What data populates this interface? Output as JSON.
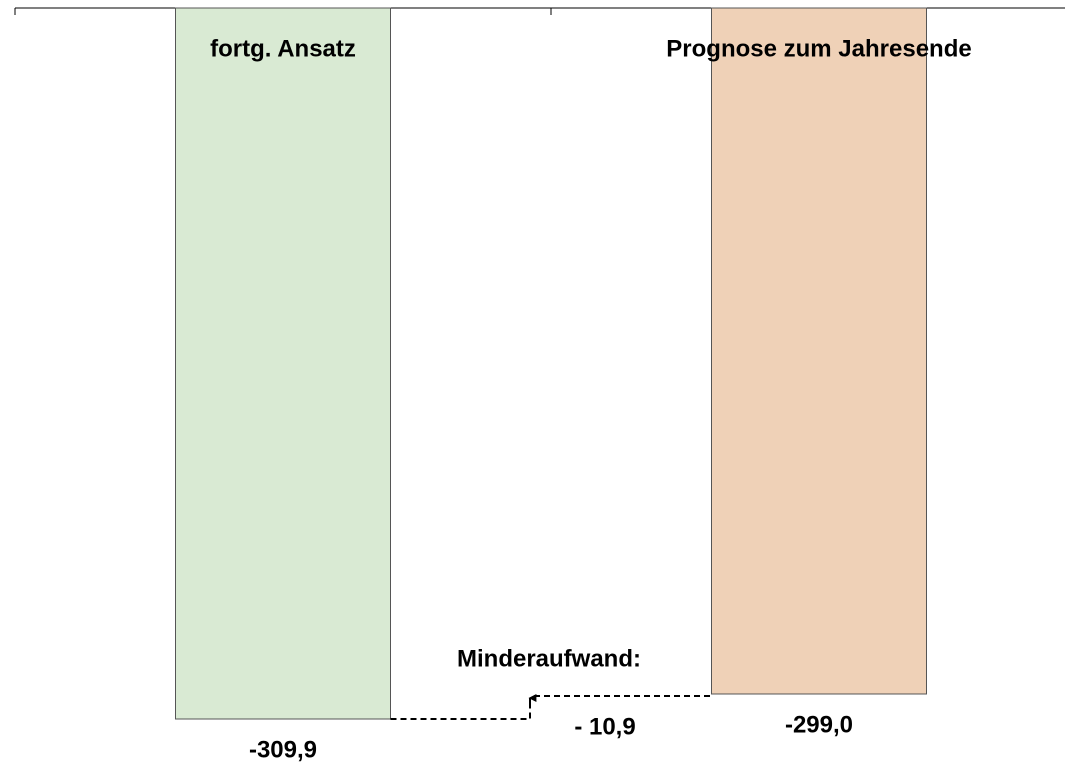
{
  "chart_data": {
    "type": "bar",
    "categories": [
      "fortg. Ansatz",
      "Prognose zum Jahresende"
    ],
    "values": [
      -309.9,
      -299.0
    ],
    "value_labels": [
      "-309,9",
      "-299,0"
    ],
    "colors": [
      "#d9ead3",
      "#efd1b7"
    ],
    "ylim": [
      -333,
      0
    ],
    "annotations": [
      "Minderaufwand:",
      "- 10,9"
    ]
  }
}
